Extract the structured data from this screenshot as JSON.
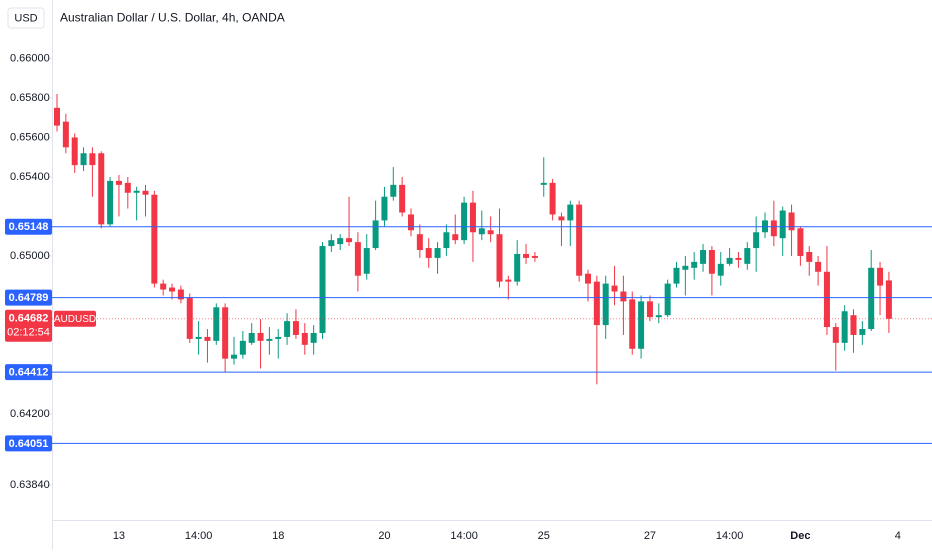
{
  "chart_data": {
    "type": "candlestick",
    "title": "Australian Dollar / U.S. Dollar, 4h, OANDA",
    "currency": "USD",
    "symbol": "AUDUSD",
    "countdown": "02:12:54",
    "up_color": "#089981",
    "down_color": "#f23645",
    "level_color": "#2962ff",
    "categories": [
      null,
      null,
      null,
      null,
      null,
      null,
      null,
      "13",
      null,
      null,
      null,
      null,
      null,
      null,
      null,
      null,
      "14:00",
      null,
      null,
      null,
      null,
      null,
      null,
      null,
      null,
      "18",
      null,
      null,
      null,
      null,
      null,
      null,
      null,
      null,
      null,
      null,
      null,
      "20",
      null,
      null,
      null,
      null,
      null,
      null,
      null,
      null,
      "14:00",
      null,
      null,
      null,
      null,
      null,
      null,
      null,
      null,
      "25",
      null,
      null,
      null,
      null,
      null,
      null,
      null,
      null,
      null,
      null,
      null,
      "27",
      null,
      null,
      null,
      null,
      null,
      null,
      null,
      null,
      "14:00",
      null,
      null,
      null,
      null,
      null,
      null,
      null,
      "Dec",
      null,
      null,
      null,
      null,
      null,
      null,
      null,
      null,
      null,
      null,
      "4"
    ],
    "open": [
      0.6575,
      0.6568,
      0.656,
      0.6546,
      0.6552,
      0.6552,
      0.6516,
      0.6538,
      0.6537,
      0.6532,
      0.6533,
      0.6531,
      0.6486,
      0.6484,
      0.6483,
      0.6479,
      0.6458,
      0.6459,
      0.6457,
      0.6474,
      0.6448,
      0.645,
      0.6456,
      0.6461,
      0.6457,
      0.6458,
      0.6459,
      0.6467,
      0.6461,
      0.6456,
      0.6461,
      0.6505,
      0.6506,
      0.6509,
      0.6507,
      0.6491,
      0.6504,
      0.6518,
      0.653,
      0.6536,
      0.6521,
      0.6511,
      0.6504,
      0.6499,
      0.6504,
      0.6511,
      0.6508,
      0.6527,
      0.6511,
      0.6513,
      0.6511,
      0.6488,
      0.6487,
      0.6501,
      0.65,
      0.6536,
      0.6537,
      0.652,
      0.6518,
      0.6526,
      0.6491,
      0.6487,
      0.6465,
      0.6485,
      0.6482,
      0.6478,
      0.6453,
      0.6477,
      0.6469,
      0.647,
      0.6486,
      0.6493,
      0.6494,
      0.6496,
      0.6503,
      0.649,
      0.6496,
      0.6499,
      0.6496,
      0.6504,
      0.6512,
      0.6518,
      0.6509,
      0.6522,
      0.6514,
      0.6502,
      0.6497,
      0.6492,
      0.6464,
      0.6456,
      0.647,
      0.646,
      0.6463,
      0.6494,
      0.64876,
      null
    ],
    "high": [
      0.6582,
      0.6572,
      0.6562,
      0.6555,
      0.6555,
      0.6553,
      0.654,
      0.6541,
      0.654,
      0.6535,
      0.6536,
      0.6533,
      0.6488,
      0.6486,
      0.6485,
      0.6481,
      0.6467,
      0.6463,
      0.6476,
      0.6476,
      0.6459,
      0.6462,
      0.6466,
      0.6468,
      0.6464,
      0.6463,
      0.6471,
      0.6473,
      0.6466,
      0.6465,
      0.6507,
      0.6511,
      0.6511,
      0.653,
      0.6512,
      0.6511,
      0.6528,
      0.6535,
      0.6545,
      0.654,
      0.6524,
      0.6516,
      0.6509,
      0.6507,
      0.6516,
      0.6521,
      0.653,
      0.6533,
      0.6523,
      0.652,
      0.6524,
      0.649,
      0.6508,
      0.6506,
      0.6502,
      0.655,
      0.6539,
      0.6522,
      0.6528,
      0.6528,
      0.6493,
      0.649,
      0.649,
      0.6495,
      0.649,
      0.6482,
      0.648,
      0.648,
      0.6476,
      0.6488,
      0.6497,
      0.65,
      0.6502,
      0.6506,
      0.6505,
      0.6502,
      0.6504,
      0.6502,
      0.6507,
      0.652,
      0.6522,
      0.6528,
      0.6525,
      0.6526,
      0.6515,
      0.6505,
      0.65,
      0.6505,
      0.6466,
      0.6475,
      0.6473,
      0.6467,
      0.6503,
      0.6497,
      0.6492,
      null
    ],
    "low": [
      0.6563,
      0.6552,
      0.6542,
      0.6543,
      0.653,
      0.6514,
      0.6515,
      0.652,
      0.6524,
      0.6518,
      0.652,
      0.6484,
      0.648,
      0.6478,
      0.6476,
      0.6456,
      0.645,
      0.6446,
      0.6455,
      0.6441,
      0.6445,
      0.6448,
      0.6455,
      0.6443,
      0.645,
      0.6448,
      0.6455,
      0.6458,
      0.645,
      0.645,
      0.6458,
      0.6502,
      0.6503,
      0.6505,
      0.6482,
      0.6488,
      0.6503,
      0.6515,
      0.6528,
      0.652,
      0.651,
      0.6499,
      0.6494,
      0.6491,
      0.65,
      0.6506,
      0.6506,
      0.6497,
      0.6508,
      0.6507,
      0.6484,
      0.6478,
      0.6485,
      0.6496,
      0.6497,
      0.653,
      0.6518,
      0.6505,
      0.6505,
      0.6487,
      0.6477,
      0.6435,
      0.6458,
      0.6475,
      0.646,
      0.645,
      0.6448,
      0.6467,
      0.6466,
      0.6469,
      0.6484,
      0.648,
      0.6488,
      0.6492,
      0.648,
      0.6485,
      0.6495,
      0.6494,
      0.6493,
      0.6492,
      0.6509,
      0.6505,
      0.65,
      0.65,
      0.6495,
      0.649,
      0.6485,
      0.646,
      0.6442,
      0.6452,
      0.6451,
      0.6455,
      0.6462,
      0.647,
      0.6461,
      null
    ],
    "close": [
      0.6566,
      0.6555,
      0.6546,
      0.6552,
      0.6546,
      0.6516,
      0.6538,
      0.6536,
      0.6532,
      0.6533,
      0.6531,
      0.6486,
      0.6483,
      0.6482,
      0.6478,
      0.6458,
      0.6459,
      0.6457,
      0.6474,
      0.6448,
      0.645,
      0.6457,
      0.6461,
      0.6457,
      0.6458,
      0.6459,
      0.6467,
      0.646,
      0.6455,
      0.6461,
      0.6505,
      0.6508,
      0.6509,
      0.6507,
      0.649,
      0.6504,
      0.6518,
      0.653,
      0.6536,
      0.6522,
      0.6513,
      0.6503,
      0.6499,
      0.6504,
      0.6512,
      0.6508,
      0.6527,
      0.6512,
      0.6514,
      0.6511,
      0.6487,
      0.6487,
      0.6501,
      0.6499,
      0.6499,
      0.6537,
      0.6521,
      0.6518,
      0.6526,
      0.649,
      0.6486,
      0.6465,
      0.6486,
      0.6482,
      0.6477,
      0.6453,
      0.6477,
      0.6469,
      0.647,
      0.6486,
      0.6494,
      0.6495,
      0.6497,
      0.6503,
      0.6491,
      0.6496,
      0.6499,
      0.6498,
      0.6504,
      0.6512,
      0.6518,
      0.651,
      0.6523,
      0.6513,
      0.65,
      0.6497,
      0.6492,
      0.6464,
      0.6456,
      0.6472,
      0.646,
      0.6463,
      0.6494,
      0.6485,
      0.64682,
      null
    ],
    "levels": [
      0.65148,
      0.64789,
      0.64412,
      0.64051
    ],
    "ylim": [
      0.63663,
      0.66296
    ],
    "yticks": [
      {
        "value": 0.66,
        "label": "0.66000"
      },
      {
        "value": 0.658,
        "label": "0.65800"
      },
      {
        "value": 0.656,
        "label": "0.65600"
      },
      {
        "value": 0.654,
        "label": "0.65400"
      },
      {
        "value": 0.65,
        "label": "0.65000"
      },
      {
        "value": 0.642,
        "label": "0.64200"
      },
      {
        "value": 0.6384,
        "label": "0.63840"
      }
    ]
  }
}
